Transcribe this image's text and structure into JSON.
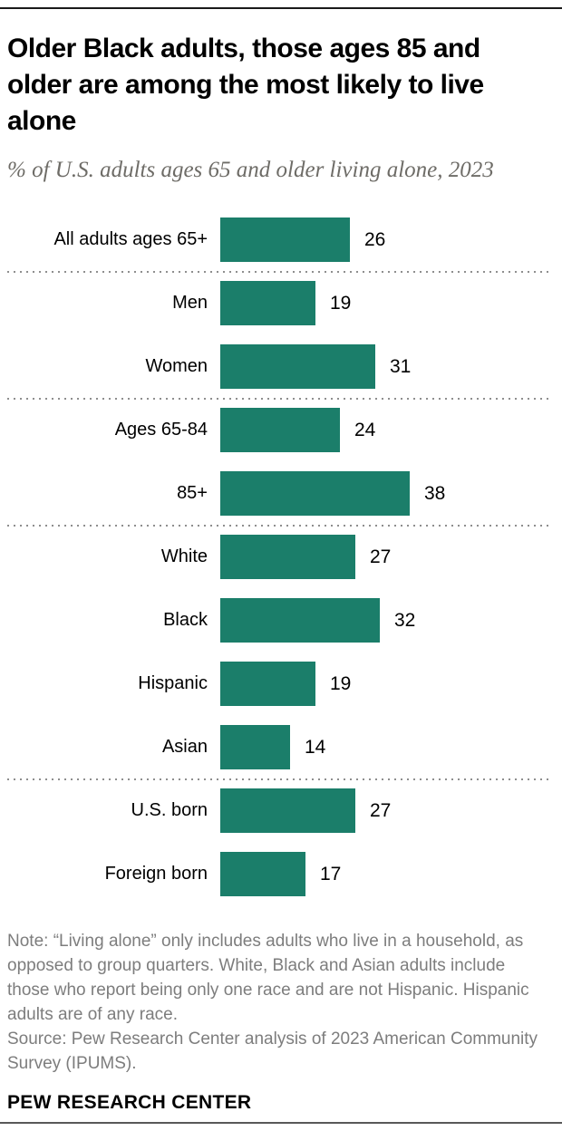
{
  "header": {
    "title": "Older Black adults, those ages 85 and older are among the most likely to live alone",
    "title_lines": [
      "Older Black adults, those ages 85 and",
      "older are among the most likely to live",
      "alone"
    ],
    "subtitle": "% of U.S. adults ages 65 and older living alone, 2023"
  },
  "chart_data": {
    "type": "bar",
    "orientation": "horizontal",
    "title": "Older Black adults, those ages 85 and older are among the most likely to live alone",
    "subtitle": "% of U.S. adults ages 65 and older living alone, 2023",
    "unit": "%",
    "data_labels": true,
    "axis_shown": false,
    "xlim": [
      0,
      40
    ],
    "categories": [
      "All adults ages 65+",
      "Men",
      "Women",
      "Ages 65-84",
      "85+",
      "White",
      "Black",
      "Hispanic",
      "Asian",
      "U.S. born",
      "Foreign born"
    ],
    "values": [
      26,
      19,
      31,
      24,
      38,
      27,
      32,
      19,
      14,
      27,
      17
    ],
    "groups": [
      [
        {
          "label": "All adults ages 65+",
          "value": 26
        }
      ],
      [
        {
          "label": "Men",
          "value": 19
        },
        {
          "label": "Women",
          "value": 31
        }
      ],
      [
        {
          "label": "Ages 65-84",
          "value": 24
        },
        {
          "label": "85+",
          "value": 38
        }
      ],
      [
        {
          "label": "White",
          "value": 27
        },
        {
          "label": "Black",
          "value": 32
        },
        {
          "label": "Hispanic",
          "value": 19
        },
        {
          "label": "Asian",
          "value": 14
        }
      ],
      [
        {
          "label": "U.S. born",
          "value": 27
        },
        {
          "label": "Foreign born",
          "value": 17
        }
      ]
    ],
    "bar_color": "#1b7e6a"
  },
  "colors": {
    "bar": "#1b7e6a",
    "title_text": "#000000",
    "subtitle_text": "#6e6c67",
    "note_text": "#7d7d7d",
    "separator_dots": "#8e8e8e",
    "top_rule": "#1a1a1a",
    "bottom_rule": "#585858"
  },
  "footer": {
    "note": "Note: “Living alone” only includes adults who live in a household, as opposed to group quarters. White, Black and Asian adults include those who report being only one race and are not Hispanic. Hispanic adults are of any race.",
    "source": "Source: Pew Research Center analysis of 2023 American Community Survey (IPUMS).",
    "brand": "PEW RESEARCH CENTER"
  }
}
